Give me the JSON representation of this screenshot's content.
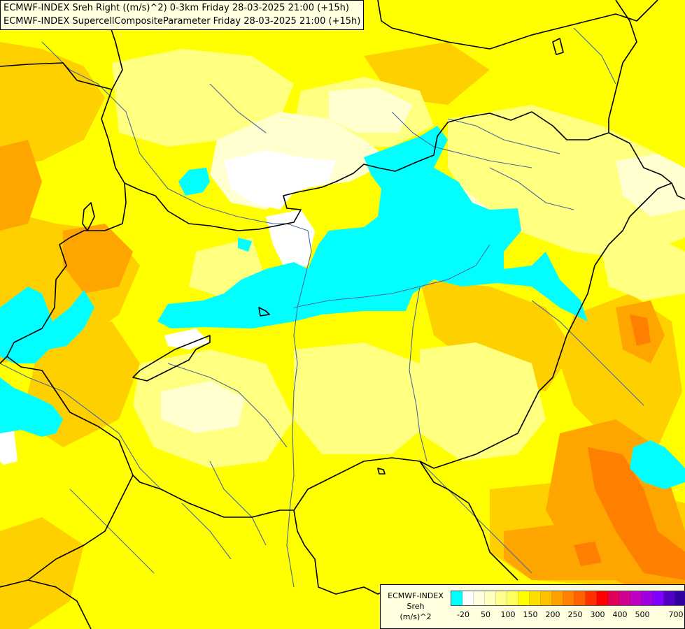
{
  "title": {
    "line1": "ECMWF-INDEX Sreh Right ((m/s)^2) 0-3km Friday 28-03-2025 21:00 (+15h)",
    "line2": "ECMWF-INDEX SupercellCompositeParameter Friday 28-03-2025 21:00 (+15h)"
  },
  "legend": {
    "title_line1": "ECMWF-INDEX",
    "title_line2": "Sreh",
    "title_line3": "(m/s)^2",
    "colors": [
      "#00ffff",
      "#ffffff",
      "#ffffe0",
      "#ffffc0",
      "#ffff90",
      "#ffff60",
      "#ffff00",
      "#ffdd00",
      "#ffc000",
      "#ffa000",
      "#ff8000",
      "#ff6000",
      "#ff3000",
      "#ff0000",
      "#e0005a",
      "#d00090",
      "#c000c0",
      "#a000e0",
      "#8000ff",
      "#5000c0",
      "#3000a0",
      "#000080"
    ],
    "ticks": [
      "-20",
      "50",
      "100",
      "150",
      "200",
      "250",
      "300",
      "400",
      "500",
      "700"
    ]
  },
  "map": {
    "colors": {
      "cyan": "#00ffff",
      "white": "#ffffff",
      "pale": "#ffffd0",
      "lightyellow": "#ffff80",
      "yellow": "#ffff00",
      "gold": "#ffd000",
      "orange": "#ffa500",
      "darkorange": "#ff7f00",
      "border": "#000000",
      "river": "#4a6a9a"
    }
  }
}
